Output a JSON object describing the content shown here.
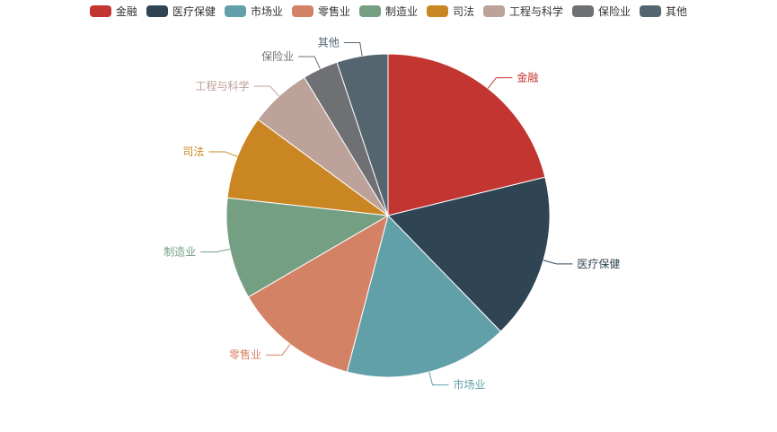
{
  "colors": [
    "#c23531",
    "#2f4554",
    "#61a0a8",
    "#d48265",
    "#749f83",
    "#ca8622",
    "#bda29a",
    "#6e7074",
    "#546570"
  ],
  "chart_data": {
    "type": "pie",
    "title": "",
    "legend": {
      "position": "top",
      "labels": [
        "金融",
        "医疗保健",
        "市场业",
        "零售业",
        "制造业",
        "司法",
        "工程与科学",
        "保险业",
        "其他"
      ]
    },
    "categories": [
      "金融",
      "医疗保健",
      "市场业",
      "零售业",
      "制造业",
      "司法",
      "工程与科学",
      "保险业",
      "其他"
    ],
    "values": [
      21.5,
      16.8,
      16.6,
      12.7,
      10.3,
      8.5,
      6.3,
      3.6,
      5.2
    ]
  }
}
